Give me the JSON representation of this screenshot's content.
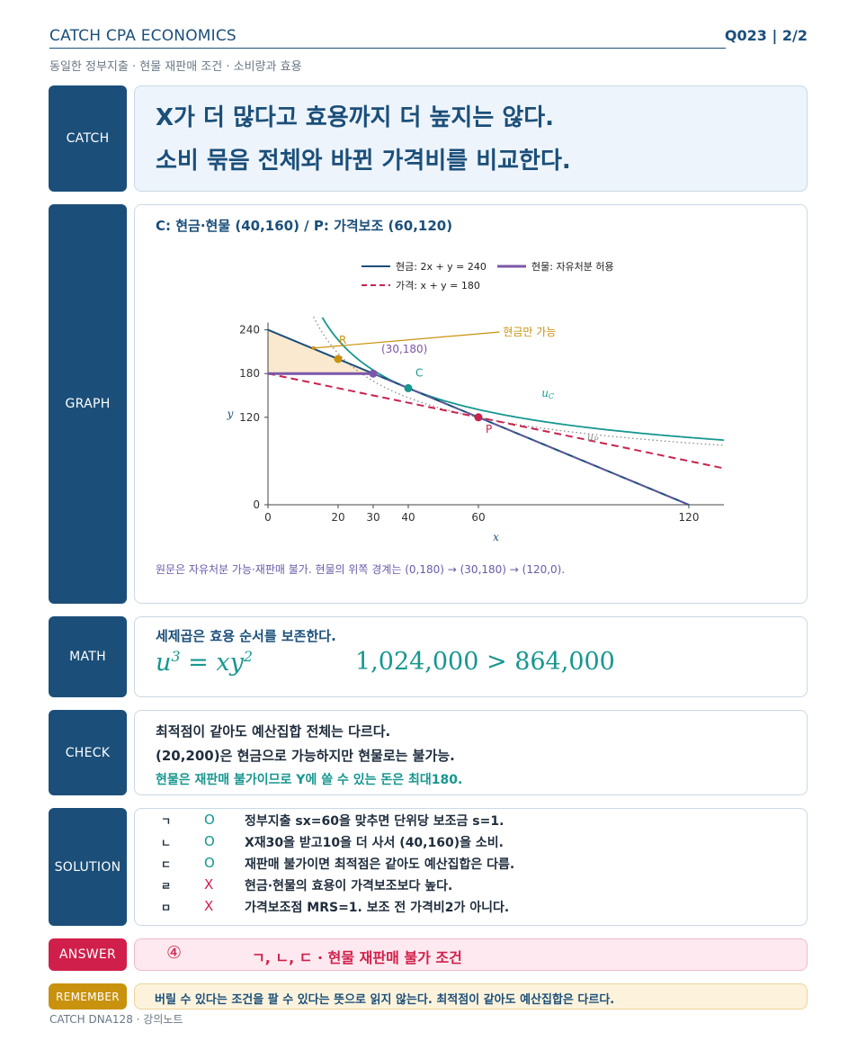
{
  "header": {
    "title": "CATCH CPA ECONOMICS",
    "question": "Q023 | 2/2",
    "subtitle": "동일한 정부지출 · 현물 재판매 조건 · 소비량과 효용"
  },
  "catch": {
    "tag": "CATCH",
    "line1": "X가 더 많다고 효용까지 더 높지는 않다.",
    "line2": "소비 묶음 전체와 바뀐 가격비를 비교한다."
  },
  "graph": {
    "tag": "GRAPH",
    "title": "C: 현금·현물 (40,160) / P: 가격보조 (60,120)",
    "note": "원문은 자유처분 가능·재판매 불가. 현물의 위쪽 경계는 (0,180) → (30,180) → (120,0).",
    "legend": {
      "cash": "현금: 2x + y = 240",
      "inkind": "현물: 자유처분 허용",
      "price": "가격: x + y = 180"
    },
    "annotations": {
      "cash_only": "현금만 가능",
      "kink": "(30,180)",
      "point_r": "R",
      "point_c": "C",
      "point_p": "P",
      "curve_uc": "u_C",
      "curve_up": "u_P"
    }
  },
  "chart_data": {
    "type": "line",
    "xlabel": "x",
    "ylabel": "y",
    "xlim": [
      0,
      130
    ],
    "ylim": [
      0,
      250
    ],
    "xticks": [
      0,
      20,
      30,
      40,
      60,
      120
    ],
    "yticks": [
      0,
      120,
      180,
      240
    ],
    "series": [
      {
        "name": "현금: 2x + y = 240",
        "style": "solid",
        "color": "#1b4f7a",
        "x": [
          0,
          120
        ],
        "y": [
          240,
          0
        ]
      },
      {
        "name": "현물: 자유처분 허용",
        "style": "thick",
        "color": "#7b57a8",
        "x": [
          0,
          30
        ],
        "y": [
          180,
          180
        ]
      },
      {
        "name": "가격: x + y = 180",
        "style": "dashed",
        "color": "#c8234e",
        "x": [
          0,
          130
        ],
        "y": [
          180,
          50
        ]
      }
    ],
    "curves": [
      {
        "label": "u_C",
        "equation": "x*y^2 = 1024000",
        "color": "#16978f",
        "style": "solid"
      },
      {
        "label": "u_P",
        "equation": "x*y^2 = 864000",
        "color": "#8a8a8a",
        "style": "dotted"
      }
    ],
    "points": [
      {
        "label": "R",
        "x": 20,
        "y": 200,
        "color": "#c9920e"
      },
      {
        "label": "(30,180)",
        "x": 30,
        "y": 180,
        "color": "#7b57a8"
      },
      {
        "label": "C",
        "x": 40,
        "y": 160,
        "color": "#16978f"
      },
      {
        "label": "P",
        "x": 60,
        "y": 120,
        "color": "#c8234e"
      }
    ],
    "shaded_region": {
      "label": "현금만 가능",
      "vertices": [
        [
          0,
          240
        ],
        [
          0,
          180
        ],
        [
          30,
          180
        ]
      ],
      "color": "#fbe9cf"
    }
  },
  "math": {
    "tag": "MATH",
    "label": "세제곱은 효용 순서를 보존한다.",
    "eq_base": "u",
    "eq_exp": "3",
    "eq_rhs": " = xy",
    "eq_rhs_exp": "2",
    "comparison": "1,024,000 > 864,000"
  },
  "check": {
    "tag": "CHECK",
    "line1": "최적점이 같아도 예산집합 전체는 다르다.",
    "line2": "(20,200)은 현금으로 가능하지만 현물로는 불가능.",
    "line3": "현물은 재판매 불가이므로 Y에 쓸 수 있는 돈은 최대180."
  },
  "solution": {
    "tag": "SOLUTION",
    "rows": [
      {
        "label": "ㄱ",
        "mark": "O",
        "text": "정부지출 sx=60을 맞추면 단위당 보조금 s=1."
      },
      {
        "label": "ㄴ",
        "mark": "O",
        "text": "X재30을 받고10을 더 사서 (40,160)을 소비."
      },
      {
        "label": "ㄷ",
        "mark": "O",
        "text": "재판매 불가이면 최적점은 같아도 예산집합은 다름."
      },
      {
        "label": "ㄹ",
        "mark": "X",
        "text": "현금·현물의 효용이 가격보조보다 높다."
      },
      {
        "label": "ㅁ",
        "mark": "X",
        "text": "가격보조점 MRS=1. 보조 전 가격비2가 아니다."
      }
    ]
  },
  "answer": {
    "tag": "ANSWER",
    "number": "④",
    "text": "ㄱ, ㄴ, ㄷ · 현물 재판매 불가 조건"
  },
  "remember": {
    "tag": "REMEMBER",
    "text": "버릴 수 있다는 조건을 팔 수 있다는 뜻으로 읽지 않는다. 최적점이 같아도 예산집합은 다르다."
  },
  "footer": "CATCH DNA128 · 강의노트",
  "colors": {
    "navy": "#1b4f7a",
    "teal": "#16978f",
    "purple": "#7b57a8",
    "crimson": "#c8234e",
    "gold": "#c9920e"
  }
}
